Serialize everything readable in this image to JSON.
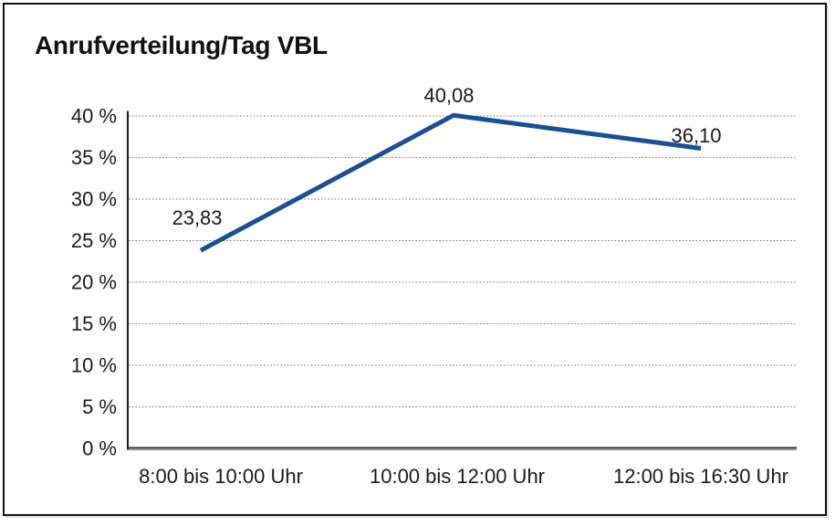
{
  "chart_data": {
    "type": "line",
    "title": "Anrufverteilung/Tag VBL",
    "categories": [
      "8:00 bis 10:00 Uhr",
      "10:00 bis 12:00 Uhr",
      "12:00 bis 16:30 Uhr"
    ],
    "values": [
      23.83,
      40.08,
      36.1
    ],
    "data_labels": [
      "23,83",
      "40,08",
      "36,10"
    ],
    "xlabel": "",
    "ylabel": "",
    "ylim": [
      0,
      40
    ],
    "ytick_step": 5,
    "ytick_labels": [
      "0 %",
      "5 %",
      "10 %",
      "15 %",
      "20 %",
      "25 %",
      "30 %",
      "35 %",
      "40 %"
    ],
    "grid": "horizontal-dotted",
    "legend": "none",
    "colors": {
      "line": "#1B4F94",
      "grid": "#6e6e6e",
      "axis": "#1a1a1a",
      "axis_shadow": "#9a9a9a",
      "text": "#1a1a1a",
      "border": "#101010",
      "background": "#ffffff"
    }
  }
}
